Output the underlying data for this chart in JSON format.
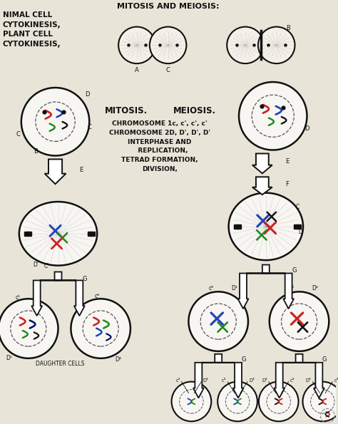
{
  "background_color": "#e8e4d8",
  "text_color": "#111111",
  "top_left_text": [
    "NIMAL CELL",
    "CYTOKINESIS,",
    "PLANT CELL",
    "CYTOKINESIS,"
  ],
  "mitosis_label": "MITOSIS.",
  "meiosis_label": "MEIOSIS.",
  "center_labels": [
    "CHROMOSOME 1c, c', c', c'",
    "CHROMOSOME 2D, D', D', D'",
    "INTERPHASE AND",
    "   REPLICATION,",
    "TETRAD FORMATION,",
    "DIVISION,"
  ],
  "daughter_cells_label": "DAUGHTER CELLS",
  "colors": {
    "red": "#cc2222",
    "blue": "#2244bb",
    "green": "#228822",
    "black": "#111111",
    "dark_navy": "#001166",
    "cell_fill": "#ffffff",
    "bg": "#e8e4d8"
  }
}
